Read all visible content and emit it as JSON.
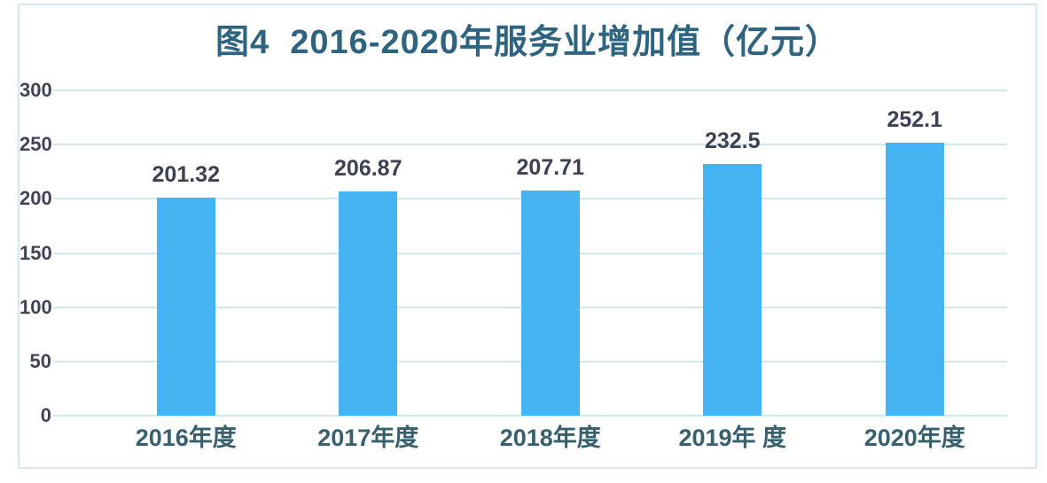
{
  "figure": {
    "title": "图4  2016-2020年服务业增加值（亿元）"
  },
  "chart_data": {
    "type": "bar",
    "title": "图4  2016-2020年服务业增加值（亿元）",
    "categories": [
      "2016年度",
      "2017年度",
      "2018年度",
      "2019年 度",
      "2020年度"
    ],
    "values": [
      201.32,
      206.87,
      207.71,
      232.5,
      252.1
    ],
    "value_labels": [
      "201.32",
      "206.87",
      "207.71",
      "232.5",
      "252.1"
    ],
    "xlabel": "",
    "ylabel": "",
    "ylim": [
      0,
      300
    ],
    "ytick_step": 50,
    "ytick_labels": [
      "0",
      "50",
      "100",
      "150",
      "200",
      "250",
      "300"
    ],
    "grid": "horizontal",
    "legend": "none",
    "colors": {
      "bar_fill": "#45b4f1",
      "gridline": "#cfe9ed",
      "frame_border": "#d6e9ee",
      "title_text": "#2e6480",
      "ytick_text": "#3f4457",
      "xtick_text": "#37606f",
      "value_label_text": "#3c4154",
      "background": "#ffffff"
    }
  }
}
